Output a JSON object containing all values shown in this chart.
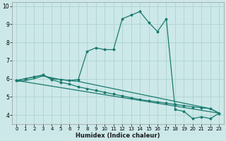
{
  "xlabel": "Humidex (Indice chaleur)",
  "bg_color": "#cce8e8",
  "grid_color": "#aacfcf",
  "line_color": "#1a7a6e",
  "xlim": [
    -0.5,
    23.5
  ],
  "ylim": [
    3.5,
    10.2
  ],
  "yticks": [
    4,
    5,
    6,
    7,
    8,
    9,
    10
  ],
  "xticks": [
    0,
    1,
    2,
    3,
    4,
    5,
    6,
    7,
    8,
    9,
    10,
    11,
    12,
    13,
    14,
    15,
    16,
    17,
    18,
    19,
    20,
    21,
    22,
    23
  ],
  "series1": [
    [
      0,
      5.9
    ],
    [
      1,
      6.0
    ],
    [
      2,
      6.1
    ],
    [
      3,
      6.2
    ],
    [
      4,
      6.0
    ],
    [
      5,
      5.95
    ],
    [
      6,
      5.9
    ],
    [
      7,
      5.95
    ],
    [
      8,
      7.5
    ],
    [
      9,
      7.7
    ],
    [
      10,
      7.6
    ],
    [
      11,
      7.6
    ],
    [
      12,
      9.3
    ],
    [
      13,
      9.5
    ],
    [
      14,
      9.7
    ],
    [
      15,
      9.1
    ],
    [
      16,
      8.6
    ],
    [
      17,
      9.3
    ],
    [
      18,
      4.3
    ],
    [
      19,
      4.2
    ],
    [
      20,
      3.8
    ],
    [
      21,
      3.9
    ],
    [
      22,
      3.8
    ],
    [
      23,
      4.1
    ]
  ],
  "series2": [
    [
      0,
      5.9
    ],
    [
      1,
      6.0
    ],
    [
      2,
      6.1
    ],
    [
      3,
      6.2
    ],
    [
      4,
      5.95
    ],
    [
      5,
      5.8
    ],
    [
      6,
      5.7
    ],
    [
      7,
      5.55
    ],
    [
      8,
      5.45
    ],
    [
      9,
      5.35
    ],
    [
      10,
      5.25
    ],
    [
      11,
      5.15
    ],
    [
      12,
      5.05
    ],
    [
      13,
      4.95
    ],
    [
      14,
      4.85
    ],
    [
      15,
      4.78
    ],
    [
      16,
      4.72
    ],
    [
      17,
      4.65
    ],
    [
      18,
      4.58
    ],
    [
      19,
      4.52
    ],
    [
      20,
      4.45
    ],
    [
      21,
      4.4
    ],
    [
      22,
      4.35
    ],
    [
      23,
      4.1
    ]
  ],
  "series3": [
    [
      0,
      5.9
    ],
    [
      23,
      4.1
    ]
  ],
  "series4": [
    [
      0,
      5.85
    ],
    [
      1,
      5.9
    ],
    [
      2,
      6.0
    ],
    [
      3,
      6.15
    ],
    [
      4,
      6.05
    ],
    [
      5,
      5.95
    ],
    [
      6,
      5.9
    ],
    [
      7,
      5.85
    ],
    [
      8,
      5.75
    ],
    [
      9,
      5.65
    ],
    [
      10,
      5.55
    ],
    [
      11,
      5.45
    ],
    [
      12,
      5.35
    ],
    [
      13,
      5.25
    ],
    [
      14,
      5.15
    ],
    [
      15,
      5.05
    ],
    [
      16,
      4.95
    ],
    [
      17,
      4.85
    ],
    [
      18,
      4.75
    ],
    [
      19,
      4.65
    ],
    [
      20,
      4.55
    ],
    [
      21,
      4.45
    ],
    [
      22,
      4.35
    ],
    [
      23,
      4.1
    ]
  ]
}
